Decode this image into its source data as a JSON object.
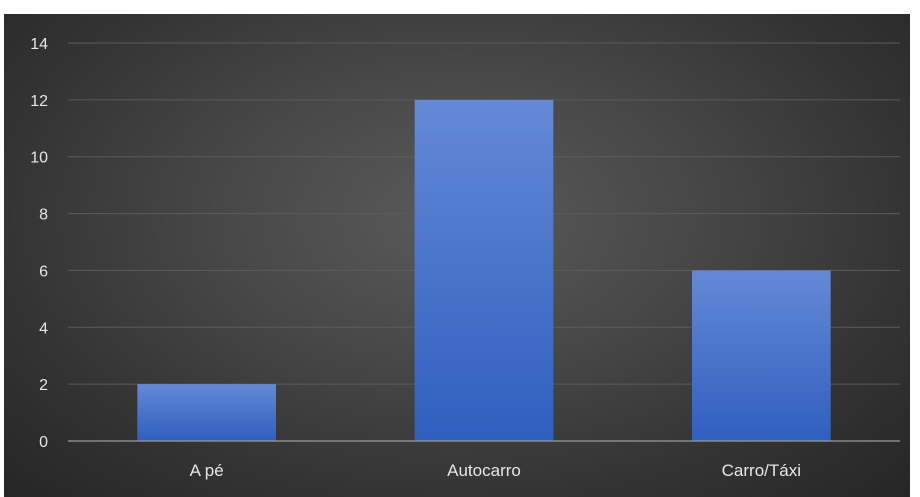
{
  "chart_data": {
    "type": "bar",
    "title": "",
    "xlabel": "",
    "ylabel": "",
    "categories": [
      "A pé",
      "Autocarro",
      "Carro/Táxi"
    ],
    "values": [
      2,
      12,
      6
    ],
    "ylim": [
      0,
      14
    ],
    "yticks": [
      0,
      2,
      4,
      6,
      8,
      10,
      12,
      14
    ],
    "grid": true,
    "legend": "none",
    "colors": {
      "bar_top": "#6489d6",
      "bar_bottom": "#2f5fbf",
      "background_center": "#5a5a5a",
      "background_edge": "#262626",
      "gridline": "#5c5c5c",
      "axis": "#9a9a9a",
      "text": "#e6e6e6"
    }
  }
}
